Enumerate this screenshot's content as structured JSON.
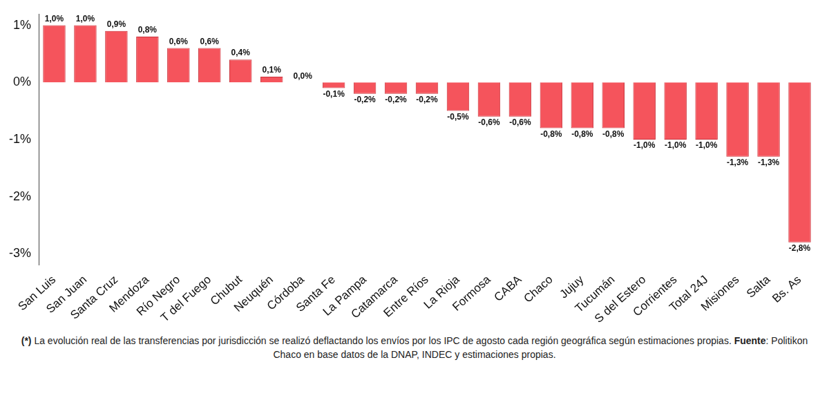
{
  "chart_data": {
    "type": "bar",
    "categories": [
      "San Luis",
      "San Juan",
      "Santa Cruz",
      "Mendoza",
      "Río Negro",
      "T del Fuego",
      "Chubut",
      "Neuquén",
      "Córdoba",
      "Santa Fe",
      "La Pampa",
      "Catamarca",
      "Entre Ríos",
      "La Rioja",
      "Formosa",
      "CABA",
      "Chaco",
      "Jujuy",
      "Tucumán",
      "S del Estero",
      "Corrientes",
      "Total 24J",
      "Misiones",
      "Salta",
      "Bs. As"
    ],
    "values": [
      1.0,
      1.0,
      0.9,
      0.8,
      0.6,
      0.6,
      0.4,
      0.1,
      0.0,
      -0.1,
      -0.2,
      -0.2,
      -0.2,
      -0.5,
      -0.6,
      -0.6,
      -0.8,
      -0.8,
      -0.8,
      -1.0,
      -1.0,
      -1.0,
      -1.3,
      -1.3,
      -2.8
    ],
    "value_labels": [
      "1,0%",
      "1,0%",
      "0,9%",
      "0,8%",
      "0,6%",
      "0,6%",
      "0,4%",
      "0,1%",
      "0,0%",
      "-0,1%",
      "-0,2%",
      "-0,2%",
      "-0,2%",
      "-0,5%",
      "-0,6%",
      "-0,6%",
      "-0,8%",
      "-0,8%",
      "-0,8%",
      "-1,0%",
      "-1,0%",
      "-1,0%",
      "-1,3%",
      "-1,3%",
      "-2,8%"
    ],
    "color": "#f5545c",
    "ylim": [
      -3.2,
      1.2
    ],
    "yticks": [
      {
        "value": -3,
        "label": "-3%"
      },
      {
        "value": -2,
        "label": "-2%"
      },
      {
        "value": -1,
        "label": "-1%"
      },
      {
        "value": 0,
        "label": "0%"
      },
      {
        "value": 1,
        "label": "1%"
      }
    ],
    "grid": false,
    "data_labels": true,
    "footnote": [
      "(*)",
      " La evolución real de las transferencias por jurisdicción se realizó deflactando los envíos por los IPC de agosto cada región geográfica según estimaciones propias. ",
      "Fuente",
      ": Politikon Chaco en base datos de la DNAP, INDEC y estimaciones propias."
    ]
  }
}
